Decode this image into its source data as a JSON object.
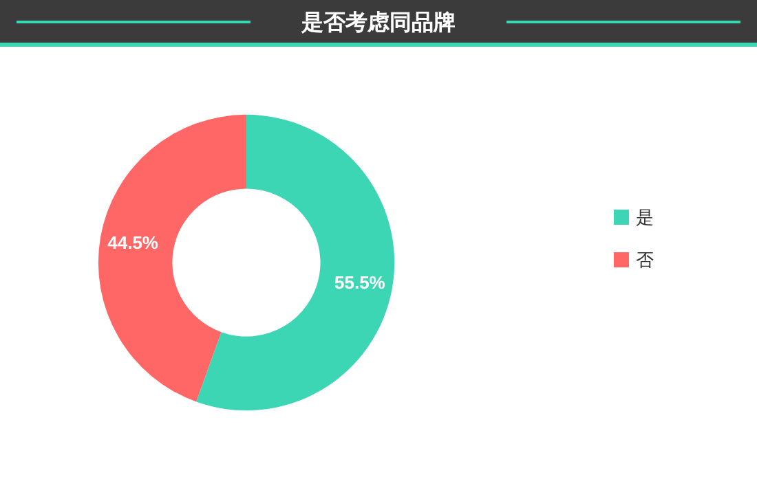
{
  "chart_data": {
    "type": "donut",
    "title": "是否考虑同品牌",
    "categories": [
      "是",
      "否"
    ],
    "values": [
      55.5,
      44.5
    ],
    "colors": [
      "#3dd6b5",
      "#ff6666"
    ],
    "value_labels": [
      "55.5%",
      "44.5%"
    ],
    "legend": "right"
  }
}
